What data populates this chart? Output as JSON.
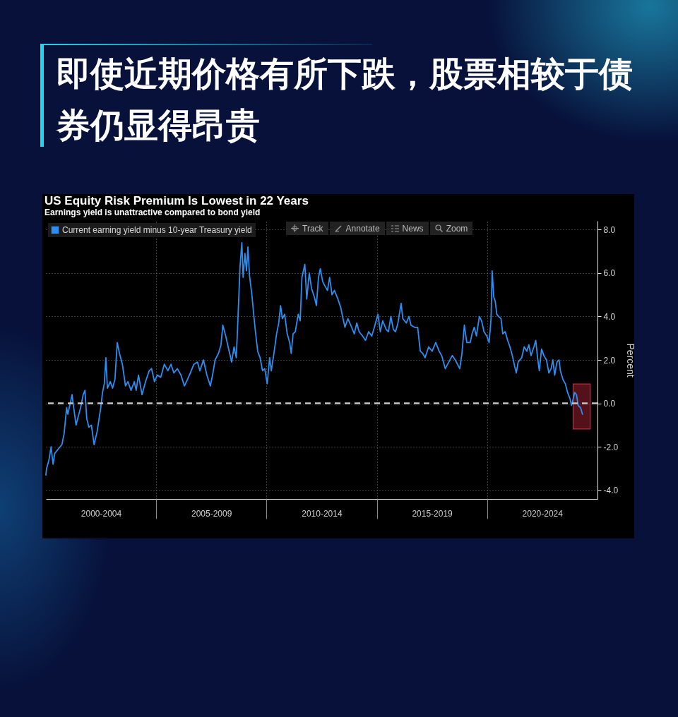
{
  "chart_data": {
    "type": "line",
    "title": "即使近期价格有所下跌，股票相较于债券仍显得昂贵",
    "subtitle": "US Equity Risk Premium Is Lowest in 22 Years",
    "annotations": [
      "Earnings yield is unattractive compared to bond yield",
      "Track",
      "Annotate",
      "News",
      "Zoom"
    ],
    "ylabel": "Percent",
    "x": [
      "2000-01-01",
      "2000-01-12",
      "2000-02-21",
      "2000-03-27",
      "2000-04-28",
      "2000-05-27",
      "2000-07-24",
      "2000-09-22",
      "2000-10-28",
      "2000-12-09",
      "2000-12-28",
      "2001-02-07",
      "2001-03-09",
      "2001-04-05",
      "2001-05-14",
      "2001-06-20",
      "2001-07-28",
      "2001-09-09",
      "2001-10-08",
      "2001-11-07",
      "2001-12-13",
      "2002-01-23",
      "2002-03-09",
      "2002-04-28",
      "2002-06-27",
      "2002-07-26",
      "2002-08-25",
      "2002-09-20",
      "2002-10-15",
      "2002-12-02",
      "2003-01-08",
      "2003-02-17",
      "2003-03-27",
      "2003-05-03",
      "2003-06-20",
      "2003-08-10",
      "2003-09-20",
      "2003-11-10",
      "2004-01-04",
      "2004-02-03",
      "2004-03-13",
      "2004-05-10",
      "2004-07-08",
      "2004-09-06",
      "2004-10-15",
      "2004-12-02",
      "2005-01-19",
      "2005-03-16",
      "2005-05-14",
      "2005-07-12",
      "2005-09-02",
      "2005-10-19",
      "2005-12-16",
      "2006-02-14",
      "2006-04-12",
      "2006-06-02",
      "2006-07-19",
      "2006-09-16",
      "2006-11-14",
      "2006-12-24",
      "2007-02-21",
      "2007-04-19",
      "2007-06-16",
      "2007-07-22",
      "2007-09-02",
      "2007-10-28",
      "2007-12-09",
      "2008-01-08",
      "2008-02-25",
      "2008-04-05",
      "2008-06-02",
      "2008-07-12",
      "2008-08-18",
      "2008-09-13",
      "2008-10-19",
      "2008-11-18",
      "2008-12-09",
      "2009-01-08",
      "2009-02-03",
      "2009-02-27",
      "2009-03-24",
      "2009-05-03",
      "2009-06-09",
      "2009-07-01",
      "2009-08-07",
      "2009-09-16",
      "2009-10-26",
      "2009-12-02",
      "2010-01-12",
      "2010-02-21",
      "2010-03-20",
      "2010-04-28",
      "2010-06-16",
      "2010-07-22",
      "2010-08-21",
      "2010-09-20",
      "2010-10-28",
      "2010-12-09",
      "2011-01-19",
      "2011-02-14",
      "2011-03-16",
      "2011-04-22",
      "2011-06-09",
      "2011-07-12",
      "2011-08-10",
      "2011-09-27",
      "2011-10-28",
      "2011-12-09",
      "2012-01-15",
      "2012-03-02",
      "2012-04-05",
      "2012-05-10",
      "2012-06-09",
      "2012-07-19",
      "2012-08-25",
      "2012-10-05",
      "2012-11-10",
      "2012-12-20",
      "2013-01-29",
      "2013-03-27",
      "2013-05-14",
      "2013-06-20",
      "2013-07-22",
      "2013-09-09",
      "2013-10-26",
      "2013-12-24",
      "2014-02-03",
      "2014-03-13",
      "2014-05-10",
      "2014-06-27",
      "2014-08-18",
      "2014-10-08",
      "2014-11-21",
      "2015-01-19",
      "2015-02-27",
      "2015-04-08",
      "2015-06-05",
      "2015-07-12",
      "2015-08-21",
      "2015-10-01",
      "2015-11-07",
      "2015-12-16",
      "2016-02-07",
      "2016-03-06",
      "2016-05-03",
      "2016-06-16",
      "2016-07-19",
      "2016-09-16",
      "2016-11-07",
      "2016-12-20",
      "2017-01-29",
      "2017-03-09",
      "2017-05-07",
      "2017-07-04",
      "2017-09-02",
      "2017-10-28",
      "2017-12-09",
      "2018-02-07",
      "2018-04-05",
      "2018-06-02",
      "2018-07-22",
      "2018-10-05",
      "2018-11-10",
      "2018-12-20",
      "2019-01-29",
      "2019-03-27",
      "2019-04-26",
      "2019-06-02",
      "2019-07-08",
      "2019-08-25",
      "2019-10-01",
      "2019-11-10",
      "2019-12-27",
      "2020-02-03",
      "2020-03-06",
      "2020-03-24",
      "2020-04-19",
      "2020-05-14",
      "2020-06-09",
      "2020-07-08",
      "2020-08-18",
      "2020-09-16",
      "2020-10-26",
      "2020-12-05",
      "2021-01-12",
      "2021-02-21",
      "2021-04-01",
      "2021-04-28",
      "2021-05-28",
      "2021-07-26",
      "2021-09-06",
      "2021-10-19",
      "2021-11-21",
      "2021-12-27",
      "2022-02-14",
      "2022-03-16",
      "2022-04-19",
      "2022-05-14",
      "2022-06-20",
      "2022-07-28",
      "2022-09-09",
      "2022-10-19",
      "2022-11-25",
      "2022-12-24",
      "2023-01-23",
      "2023-03-02",
      "2023-04-05",
      "2023-04-28",
      "2023-06-09",
      "2023-07-19",
      "2023-08-25",
      "2023-10-05",
      "2023-10-28",
      "2023-11-25",
      "2023-12-20",
      "2024-01-19",
      "2024-02-17",
      "2024-03-27",
      "2024-04-28"
    ],
    "series": [
      {
        "name": "Current earning yield minus 10-year Treasury yield",
        "color": "#2b8ef0",
        "values": [
          -3.3,
          -3.0,
          -2.6,
          -2.0,
          -2.8,
          -2.3,
          -2.1,
          -1.9,
          -1.4,
          -0.2,
          -0.5,
          0.0,
          0.4,
          -0.2,
          -1.0,
          -0.6,
          -0.2,
          0.4,
          0.6,
          -0.7,
          -1.1,
          -1.0,
          -1.9,
          -1.3,
          -0.2,
          0.5,
          0.9,
          2.1,
          0.7,
          1.0,
          0.7,
          1.1,
          2.8,
          2.3,
          1.8,
          0.8,
          1.0,
          0.6,
          1.0,
          0.6,
          1.3,
          0.4,
          1.0,
          1.5,
          1.6,
          1.0,
          1.3,
          1.2,
          1.8,
          1.5,
          1.8,
          1.4,
          1.6,
          1.3,
          0.8,
          1.1,
          1.4,
          1.8,
          1.9,
          1.5,
          2.0,
          1.3,
          0.8,
          1.3,
          2.0,
          2.3,
          2.7,
          3.6,
          3.1,
          2.6,
          1.9,
          2.6,
          2.1,
          3.8,
          6.3,
          7.4,
          5.8,
          6.9,
          6.1,
          7.2,
          5.9,
          5.0,
          3.9,
          3.3,
          2.4,
          2.1,
          1.5,
          1.6,
          0.9,
          2.1,
          1.5,
          2.2,
          3.2,
          3.7,
          4.5,
          3.9,
          4.1,
          3.2,
          2.8,
          2.3,
          3.2,
          3.3,
          4.1,
          3.8,
          5.8,
          6.4,
          4.8,
          6.0,
          5.3,
          4.9,
          4.5,
          5.8,
          6.2,
          5.6,
          5.4,
          5.2,
          5.8,
          5.0,
          5.2,
          4.8,
          4.4,
          3.9,
          3.5,
          3.9,
          3.6,
          3.2,
          3.7,
          3.3,
          3.1,
          2.9,
          3.3,
          3.1,
          3.5,
          4.1,
          3.3,
          3.8,
          3.4,
          3.3,
          4.0,
          3.4,
          3.3,
          3.7,
          4.6,
          3.9,
          3.7,
          4.0,
          3.6,
          3.5,
          3.5,
          2.4,
          2.3,
          2.1,
          2.6,
          2.4,
          2.8,
          2.4,
          2.2,
          1.6,
          1.9,
          2.2,
          2.0,
          1.6,
          2.3,
          3.6,
          2.8,
          2.8,
          3.2,
          3.5,
          3.1,
          4.0,
          3.8,
          3.3,
          3.1,
          2.8,
          3.9,
          6.1,
          4.9,
          4.7,
          4.1,
          4.0,
          3.9,
          3.2,
          3.3,
          2.9,
          2.6,
          2.2,
          1.7,
          1.4,
          1.9,
          2.1,
          2.6,
          2.4,
          2.7,
          2.2,
          2.6,
          2.9,
          2.0,
          1.5,
          2.5,
          2.2,
          2.0,
          1.4,
          1.6,
          2.0,
          1.3,
          1.9,
          2.0,
          1.5,
          1.1,
          0.9,
          0.5,
          0.2,
          -0.1,
          0.2,
          0.5,
          0.4,
          -0.1,
          -0.2,
          -0.5
        ]
      }
    ],
    "xlim": [
      "2000-01-01",
      "2025-01-01"
    ],
    "xticks": [
      {
        "value": "2002-07-01",
        "label": "2000-2004"
      },
      {
        "value": "2005-01-01",
        "label": null
      },
      {
        "value": "2007-07-01",
        "label": "2005-2009"
      },
      {
        "value": "2010-01-01",
        "label": null
      },
      {
        "value": "2012-07-01",
        "label": "2010-2014"
      },
      {
        "value": "2015-01-01",
        "label": null
      },
      {
        "value": "2017-07-01",
        "label": "2015-2019"
      },
      {
        "value": "2020-01-01",
        "label": null
      },
      {
        "value": "2022-07-01",
        "label": "2020-2024"
      }
    ],
    "ylim": [
      -4.4,
      8.4
    ],
    "yticks": [
      {
        "value": -4,
        "label": "-4.0"
      },
      {
        "value": -2,
        "label": "-2.0"
      },
      {
        "value": 0,
        "label": "0.0"
      },
      {
        "value": 2,
        "label": "2.0"
      },
      {
        "value": 4,
        "label": "4.0"
      },
      {
        "value": 6,
        "label": "6.0"
      },
      {
        "value": 8,
        "label": "8.0"
      }
    ],
    "ref_lines": [
      {
        "axis": "y",
        "value": 0,
        "color": "#c4c4c4",
        "line_style": "dashed"
      }
    ],
    "bands": [
      {
        "axis": "x",
        "from": "2023-11-25",
        "to": "2024-09-02",
        "color": "#c8283c"
      }
    ],
    "grid": true,
    "legend": "top left"
  }
}
